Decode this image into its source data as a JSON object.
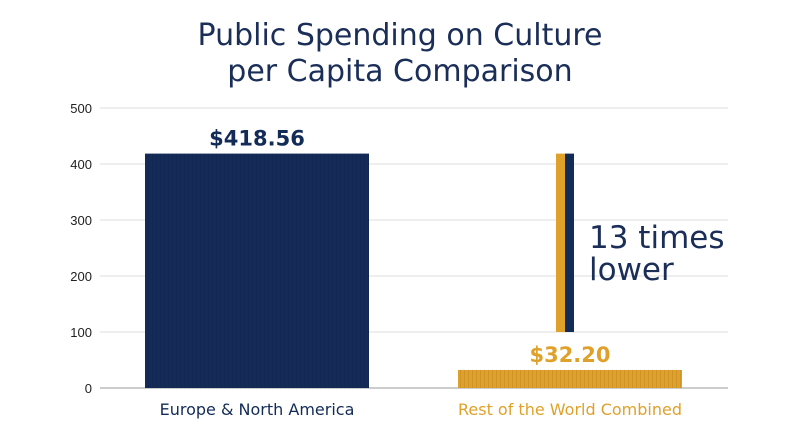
{
  "chart_data": {
    "type": "bar",
    "title": "Public Spending on Culture per Capita Comparison",
    "title_lines": [
      "Public Spending on Culture",
      "per Capita Comparison"
    ],
    "categories": [
      "Europe & North America",
      "Rest of the World Combined"
    ],
    "values": [
      418.56,
      32.2
    ],
    "data_labels": [
      "$418.56",
      "$32.20"
    ],
    "colors": [
      "#132b57",
      "#e0a12a"
    ],
    "yticks": [
      "0",
      "100",
      "200",
      "300",
      "400",
      "500"
    ],
    "ylim": [
      0,
      500
    ],
    "grid": true,
    "xlabel": "",
    "ylabel": "",
    "annotation": {
      "lines": [
        "13 times",
        "lower"
      ],
      "arrow_colors": [
        "#e0a12a",
        "#132b57"
      ]
    }
  }
}
